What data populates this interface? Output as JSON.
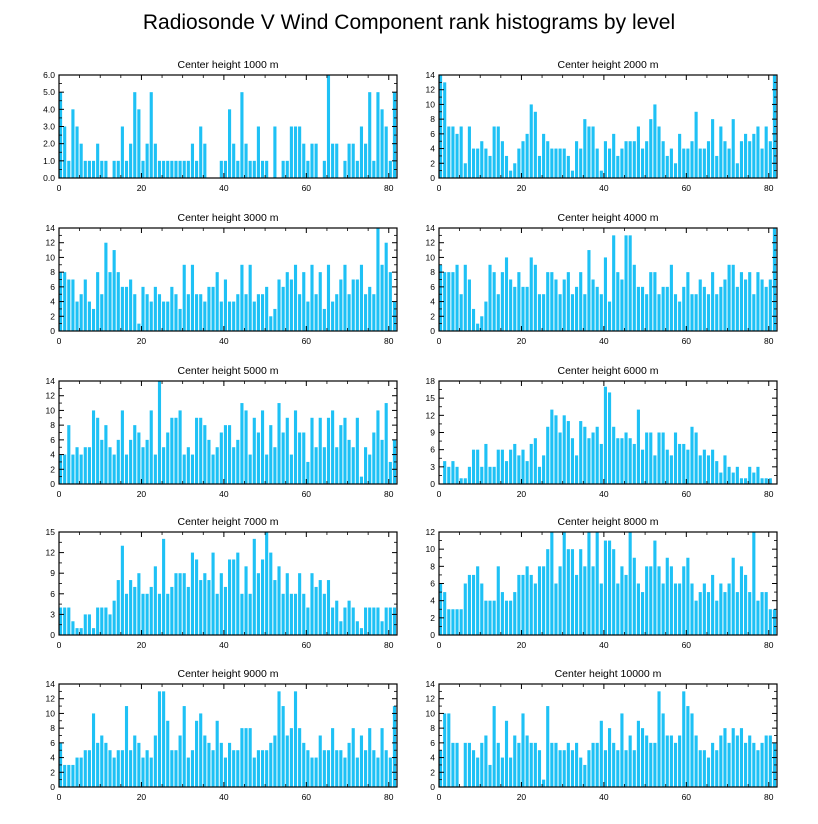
{
  "title": "Radiosonde V Wind Component rank histograms by level",
  "bar_color": "#1ec1f5",
  "chart_data": [
    {
      "type": "bar",
      "title": "Center height 1000 m",
      "xlim": [
        0,
        82
      ],
      "ylim": [
        0,
        6
      ],
      "yticks": [
        "0.0",
        "1.0",
        "2.0",
        "3.0",
        "4.0",
        "5.0",
        "6.0"
      ],
      "xticks": [
        "0",
        "20",
        "40",
        "60",
        "80"
      ],
      "values": [
        5,
        3,
        1,
        4,
        3,
        2,
        1,
        1,
        1,
        2,
        1,
        1,
        0,
        1,
        1,
        3,
        1,
        2,
        5,
        4,
        1,
        2,
        5,
        2,
        1,
        1,
        1,
        1,
        1,
        1,
        1,
        1,
        2,
        1,
        3,
        2,
        0,
        0,
        0,
        1,
        1,
        4,
        2,
        1,
        5,
        2,
        1,
        1,
        3,
        1,
        1,
        0,
        3,
        0,
        1,
        1,
        3,
        3,
        3,
        2,
        1,
        2,
        2,
        0,
        1,
        6,
        2,
        2,
        0,
        1,
        2,
        2,
        1,
        3,
        2,
        5,
        1,
        5,
        4,
        3,
        1,
        5
      ]
    },
    {
      "type": "bar",
      "title": "Center height 2000 m",
      "xlim": [
        0,
        82
      ],
      "ylim": [
        0,
        14
      ],
      "yticks": [
        "0",
        "2",
        "4",
        "6",
        "8",
        "10",
        "12",
        "14"
      ],
      "xticks": [
        "0",
        "20",
        "40",
        "60",
        "80"
      ],
      "values": [
        14,
        13,
        7,
        7,
        6,
        7,
        2,
        7,
        4,
        4,
        5,
        4,
        3,
        7,
        7,
        5,
        3,
        1,
        2,
        4,
        5,
        6,
        10,
        9,
        3,
        6,
        5,
        4,
        4,
        4,
        4,
        3,
        1,
        5,
        4,
        8,
        7,
        7,
        4,
        1,
        5,
        4,
        6,
        3,
        4,
        5,
        5,
        5,
        7,
        4,
        5,
        8,
        10,
        7,
        5,
        3,
        4,
        2,
        6,
        4,
        4,
        5,
        9,
        4,
        4,
        5,
        8,
        3,
        7,
        5,
        4,
        8,
        2,
        5,
        6,
        5,
        6,
        7,
        4,
        7,
        5,
        14
      ]
    },
    {
      "type": "bar",
      "title": "Center height 3000 m",
      "xlim": [
        0,
        82
      ],
      "ylim": [
        0,
        14
      ],
      "yticks": [
        "0",
        "2",
        "4",
        "6",
        "8",
        "10",
        "12",
        "14"
      ],
      "xticks": [
        "0",
        "20",
        "40",
        "60",
        "80"
      ],
      "values": [
        8,
        8,
        7,
        7,
        4,
        5,
        7,
        4,
        3,
        8,
        5,
        12,
        8,
        11,
        8,
        6,
        6,
        7,
        5,
        1,
        6,
        5,
        4,
        6,
        5,
        4,
        4,
        6,
        5,
        3,
        9,
        5,
        9,
        5,
        5,
        4,
        6,
        6,
        8,
        4,
        7,
        4,
        4,
        5,
        9,
        5,
        9,
        4,
        5,
        5,
        6,
        2,
        3,
        7,
        6,
        8,
        7,
        9,
        5,
        8,
        4,
        9,
        5,
        8,
        3,
        9,
        4,
        5,
        7,
        9,
        5,
        7,
        7,
        9,
        5,
        6,
        5,
        14,
        9,
        12,
        8,
        4
      ]
    },
    {
      "type": "bar",
      "title": "Center height 4000 m",
      "xlim": [
        0,
        82
      ],
      "ylim": [
        0,
        14
      ],
      "yticks": [
        "0",
        "2",
        "4",
        "6",
        "8",
        "10",
        "12",
        "14"
      ],
      "xticks": [
        "0",
        "20",
        "40",
        "60",
        "80"
      ],
      "values": [
        9,
        8,
        8,
        8,
        9,
        5,
        9,
        7,
        3,
        1,
        2,
        4,
        9,
        8,
        5,
        8,
        10,
        7,
        6,
        8,
        6,
        6,
        10,
        9,
        5,
        5,
        8,
        8,
        7,
        5,
        7,
        8,
        5,
        6,
        8,
        5,
        11,
        7,
        6,
        5,
        10,
        4,
        13,
        8,
        7,
        13,
        13,
        9,
        6,
        6,
        5,
        8,
        8,
        5,
        6,
        6,
        9,
        5,
        4,
        6,
        8,
        5,
        5,
        7,
        6,
        5,
        8,
        5,
        6,
        7,
        9,
        9,
        6,
        8,
        7,
        8,
        5,
        8,
        7,
        6,
        7,
        14
      ]
    },
    {
      "type": "bar",
      "title": "Center height 5000 m",
      "xlim": [
        0,
        82
      ],
      "ylim": [
        0,
        14
      ],
      "yticks": [
        "0",
        "2",
        "4",
        "6",
        "8",
        "10",
        "12",
        "14"
      ],
      "xticks": [
        "0",
        "20",
        "40",
        "60",
        "80"
      ],
      "values": [
        4,
        4,
        8,
        4,
        5,
        4,
        5,
        5,
        10,
        9,
        6,
        8,
        5,
        4,
        6,
        10,
        4,
        6,
        8,
        7,
        5,
        6,
        10,
        4,
        14,
        5,
        7,
        9,
        9,
        10,
        4,
        5,
        4,
        9,
        9,
        8,
        6,
        4,
        5,
        7,
        8,
        8,
        5,
        6,
        11,
        10,
        4,
        9,
        7,
        10,
        4,
        8,
        5,
        11,
        7,
        9,
        4,
        10,
        7,
        7,
        3,
        9,
        5,
        9,
        5,
        9,
        10,
        5,
        8,
        9,
        6,
        5,
        9,
        1,
        5,
        4,
        7,
        10,
        6,
        11,
        3,
        6
      ]
    },
    {
      "type": "bar",
      "title": "Center height 6000 m",
      "xlim": [
        0,
        82
      ],
      "ylim": [
        0,
        18
      ],
      "yticks": [
        "0",
        "3",
        "6",
        "9",
        "12",
        "15",
        "18"
      ],
      "xticks": [
        "0",
        "20",
        "40",
        "60",
        "80"
      ],
      "values": [
        0,
        4,
        3,
        4,
        3,
        1,
        1,
        3,
        6,
        6,
        3,
        7,
        3,
        3,
        6,
        6,
        4,
        6,
        7,
        5,
        6,
        4,
        7,
        8,
        3,
        5,
        10,
        13,
        12,
        9,
        12,
        11,
        8,
        5,
        11,
        10,
        8,
        9,
        10,
        7,
        17,
        16,
        10,
        8,
        8,
        9,
        8,
        7,
        13,
        6,
        9,
        9,
        5,
        9,
        9,
        6,
        5,
        9,
        7,
        7,
        6,
        10,
        9,
        5,
        6,
        5,
        6,
        4,
        2,
        5,
        3,
        2,
        3,
        1,
        1,
        3,
        2,
        3,
        1,
        1,
        1,
        0
      ]
    },
    {
      "type": "bar",
      "title": "Center height 7000 m",
      "xlim": [
        0,
        82
      ],
      "ylim": [
        0,
        15
      ],
      "yticks": [
        "0",
        "3",
        "6",
        "9",
        "12",
        "15"
      ],
      "xticks": [
        "0",
        "20",
        "40",
        "60",
        "80"
      ],
      "values": [
        4,
        4,
        4,
        2,
        1,
        1,
        3,
        3,
        1,
        4,
        4,
        4,
        3,
        5,
        8,
        13,
        6,
        8,
        7,
        9,
        6,
        6,
        7,
        10,
        6,
        14,
        6,
        7,
        9,
        9,
        9,
        7,
        12,
        11,
        8,
        9,
        8,
        12,
        6,
        9,
        7,
        11,
        11,
        12,
        6,
        10,
        6,
        14,
        9,
        11,
        15,
        12,
        8,
        10,
        6,
        9,
        6,
        6,
        9,
        6,
        4,
        9,
        7,
        8,
        6,
        8,
        4,
        5,
        2,
        4,
        5,
        4,
        2,
        1,
        4,
        4,
        4,
        4,
        2,
        4,
        4,
        4
      ]
    },
    {
      "type": "bar",
      "title": "Center height 8000 m",
      "xlim": [
        0,
        82
      ],
      "ylim": [
        0,
        12
      ],
      "yticks": [
        "0",
        "2",
        "4",
        "6",
        "8",
        "10",
        "12"
      ],
      "xticks": [
        "0",
        "20",
        "40",
        "60",
        "80"
      ],
      "values": [
        6,
        5,
        3,
        3,
        3,
        3,
        6,
        7,
        7,
        8,
        6,
        4,
        4,
        4,
        8,
        5,
        4,
        4,
        5,
        7,
        7,
        8,
        7,
        6,
        8,
        8,
        10,
        12,
        6,
        8,
        12,
        10,
        10,
        7,
        10,
        8,
        12,
        8,
        12,
        6,
        11,
        11,
        10,
        6,
        8,
        7,
        12,
        9,
        6,
        5,
        8,
        8,
        11,
        8,
        6,
        9,
        8,
        6,
        6,
        8,
        9,
        6,
        4,
        5,
        6,
        5,
        7,
        4,
        6,
        5,
        6,
        9,
        5,
        8,
        7,
        5,
        12,
        4,
        5,
        5,
        3,
        3
      ]
    },
    {
      "type": "bar",
      "title": "Center height 9000 m",
      "xlim": [
        0,
        82
      ],
      "ylim": [
        0,
        14
      ],
      "yticks": [
        "0",
        "2",
        "4",
        "6",
        "8",
        "10",
        "12",
        "14"
      ],
      "xticks": [
        "0",
        "20",
        "40",
        "60",
        "80"
      ],
      "values": [
        6,
        3,
        3,
        3,
        4,
        4,
        5,
        5,
        10,
        6,
        7,
        6,
        5,
        4,
        5,
        5,
        11,
        5,
        7,
        6,
        4,
        5,
        4,
        7,
        13,
        13,
        9,
        5,
        5,
        7,
        11,
        4,
        5,
        9,
        10,
        7,
        6,
        5,
        9,
        6,
        4,
        6,
        5,
        5,
        8,
        8,
        8,
        4,
        5,
        5,
        5,
        6,
        7,
        13,
        11,
        7,
        8,
        13,
        8,
        6,
        5,
        4,
        4,
        7,
        5,
        5,
        8,
        5,
        5,
        4,
        6,
        8,
        4,
        7,
        5,
        8,
        5,
        4,
        8,
        5,
        4,
        11
      ]
    },
    {
      "type": "bar",
      "title": "Center height 10000 m",
      "xlim": [
        0,
        82
      ],
      "ylim": [
        0,
        14
      ],
      "yticks": [
        "0",
        "2",
        "4",
        "6",
        "8",
        "10",
        "12",
        "14"
      ],
      "xticks": [
        "0",
        "20",
        "40",
        "60",
        "80"
      ],
      "values": [
        5,
        10,
        10,
        6,
        6,
        0,
        6,
        6,
        5,
        4,
        6,
        7,
        3,
        11,
        6,
        4,
        9,
        4,
        7,
        6,
        10,
        7,
        6,
        6,
        5,
        1,
        11,
        6,
        6,
        5,
        5,
        6,
        5,
        6,
        4,
        3,
        5,
        6,
        6,
        9,
        5,
        8,
        6,
        5,
        10,
        5,
        7,
        5,
        9,
        8,
        7,
        6,
        6,
        13,
        10,
        7,
        7,
        6,
        7,
        13,
        11,
        10,
        7,
        5,
        5,
        4,
        6,
        5,
        7,
        8,
        6,
        8,
        7,
        8,
        6,
        7,
        6,
        5,
        6,
        7,
        7,
        6
      ]
    }
  ]
}
